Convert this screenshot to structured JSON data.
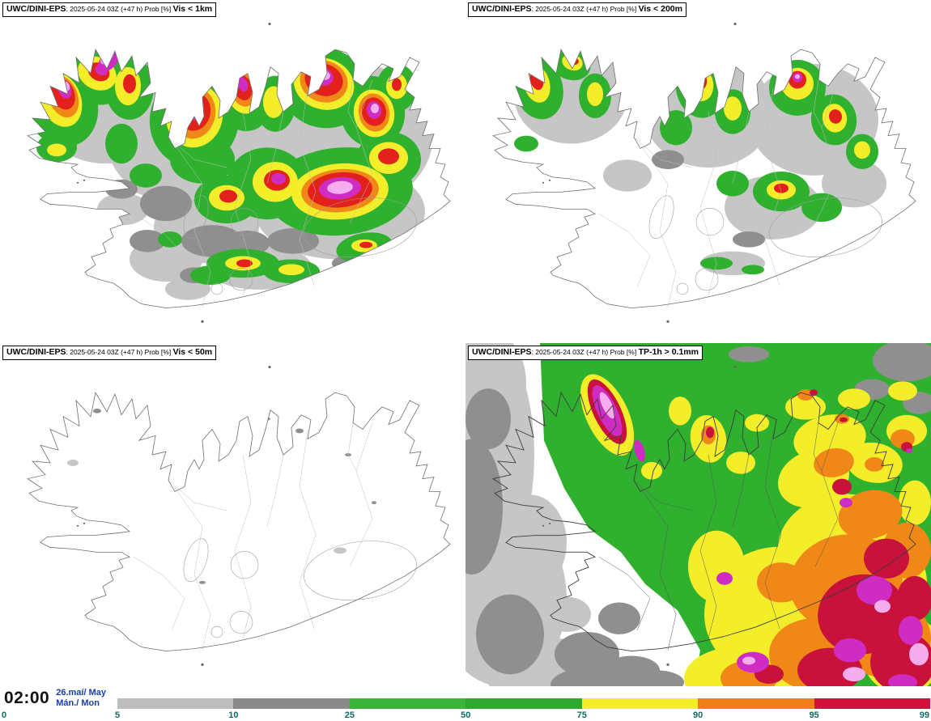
{
  "panels": [
    {
      "prefix": "UWC/DINI-EPS",
      "meta": ": 2025-05-24 03Z (+47 h) Prob [%] ",
      "threshold": "Vis < 1km"
    },
    {
      "prefix": "UWC/DINI-EPS",
      "meta": ": 2025-05-24 03Z (+47 h) Prob [%] ",
      "threshold": "Vis < 200m"
    },
    {
      "prefix": "UWC/DINI-EPS",
      "meta": ": 2025-05-24 03Z (+47 h) Prob [%] ",
      "threshold": "Vis < 50m"
    },
    {
      "prefix": "UWC/DINI-EPS",
      "meta": ": 2025-05-24 03Z (+47 h) Prob [%] ",
      "threshold": "TP-1h > 0.1mm"
    }
  ],
  "footer": {
    "time": "02:00",
    "date_line1": "26.maí/ May",
    "date_line2": "Mán./ Mon"
  },
  "legend": {
    "ticks": [
      "0",
      "5",
      "10",
      "25",
      "50",
      "75",
      "90",
      "95",
      "99"
    ],
    "segments": [
      {
        "from": "5",
        "to": "10",
        "color": "#bdbdbd"
      },
      {
        "from": "10",
        "to": "25",
        "color": "#8a8a8a"
      },
      {
        "from": "25",
        "to": "50",
        "color": "#3ab53a"
      },
      {
        "from": "50",
        "to": "75",
        "color": "#2fa82f"
      },
      {
        "from": "75",
        "to": "90",
        "color": "#f4ee2a"
      },
      {
        "from": "90",
        "to": "95",
        "color": "#ef7d1a"
      },
      {
        "from": "95",
        "to": "99",
        "color": "#d2103c"
      }
    ]
  },
  "colors": {
    "tick_text": "#0e6b5f",
    "date_text": "#1b3fa8",
    "prob_green": "#2fb12f",
    "prob_yellow": "#f4ee2a",
    "prob_orange": "#f08818",
    "prob_red": "#e3211c",
    "prob_crimson": "#c8123c",
    "prob_magenta": "#cf2cc4",
    "prob_pink": "#f5adee",
    "prob_gray_light": "#c6c6c6",
    "prob_gray_dark": "#8f8f8f"
  }
}
